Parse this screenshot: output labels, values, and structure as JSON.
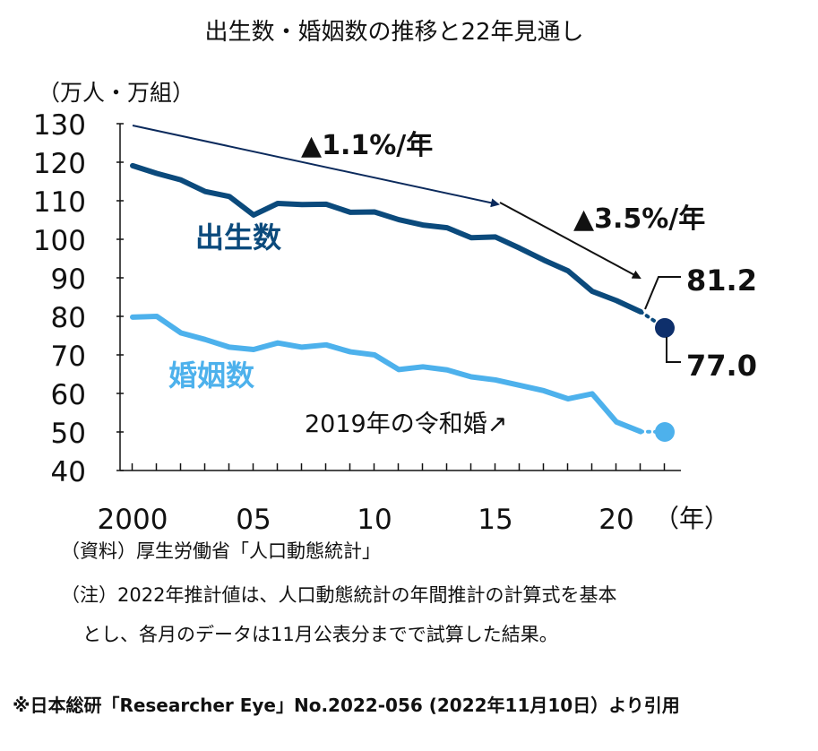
{
  "chart_data": {
    "type": "line",
    "title": "出生数・婚姻数の推移と22年見通し",
    "ylabel": "（万人・万組）",
    "xlabel": "（年）",
    "ylim": [
      40,
      130
    ],
    "xlim": [
      2000,
      2022
    ],
    "yticks": [
      "130",
      "120",
      "110",
      "100",
      "90",
      "80",
      "70",
      "60",
      "50",
      "40"
    ],
    "xticks": [
      {
        "x": 2000,
        "label": "2000"
      },
      {
        "x": 2005,
        "label": "05"
      },
      {
        "x": 2010,
        "label": "10"
      },
      {
        "x": 2015,
        "label": "15"
      },
      {
        "x": 2020,
        "label": "20"
      }
    ],
    "x": [
      2000,
      2001,
      2002,
      2003,
      2004,
      2005,
      2006,
      2007,
      2008,
      2009,
      2010,
      2011,
      2012,
      2013,
      2014,
      2015,
      2016,
      2017,
      2018,
      2019,
      2020,
      2021
    ],
    "series": [
      {
        "name": "出生数",
        "color": "#0b4a7c",
        "values": [
          119.1,
          117.1,
          115.4,
          112.4,
          111.1,
          106.3,
          109.3,
          109.0,
          109.1,
          107.0,
          107.1,
          105.1,
          103.7,
          103.0,
          100.4,
          100.6,
          97.7,
          94.6,
          91.8,
          86.5,
          84.1,
          81.2
        ],
        "forecast": {
          "x": 2022,
          "value": 77.0,
          "color": "#0e2f6b"
        }
      },
      {
        "name": "婚姻数",
        "color": "#4db1ec",
        "values": [
          79.8,
          80.0,
          75.7,
          74.0,
          72.0,
          71.4,
          73.1,
          72.0,
          72.6,
          70.8,
          70.0,
          66.2,
          66.9,
          66.1,
          64.3,
          63.5,
          62.1,
          60.7,
          58.6,
          59.9,
          52.6,
          50.1
        ],
        "forecast": {
          "x": 2022,
          "value": 50.0,
          "color": "#4db1ec"
        }
      }
    ],
    "annotations": {
      "trend1": "▲1.1%/年",
      "trend2": "▲3.5%/年",
      "value_2021": "81.2",
      "value_2022": "77.0",
      "reiwa": "2019年の令和婚↗"
    }
  },
  "notes": {
    "source": "（資料）厚生労働省「人口動態統計」",
    "note_line1": "（注）2022年推計値は、人口動態統計の年間推計の計算式を基本",
    "note_line2": "とし、各月のデータは11月公表分までで試算した結果。"
  },
  "credit": "※日本総研「Researcher Eye」No.2022-056 (2022年11月10日）より引用"
}
